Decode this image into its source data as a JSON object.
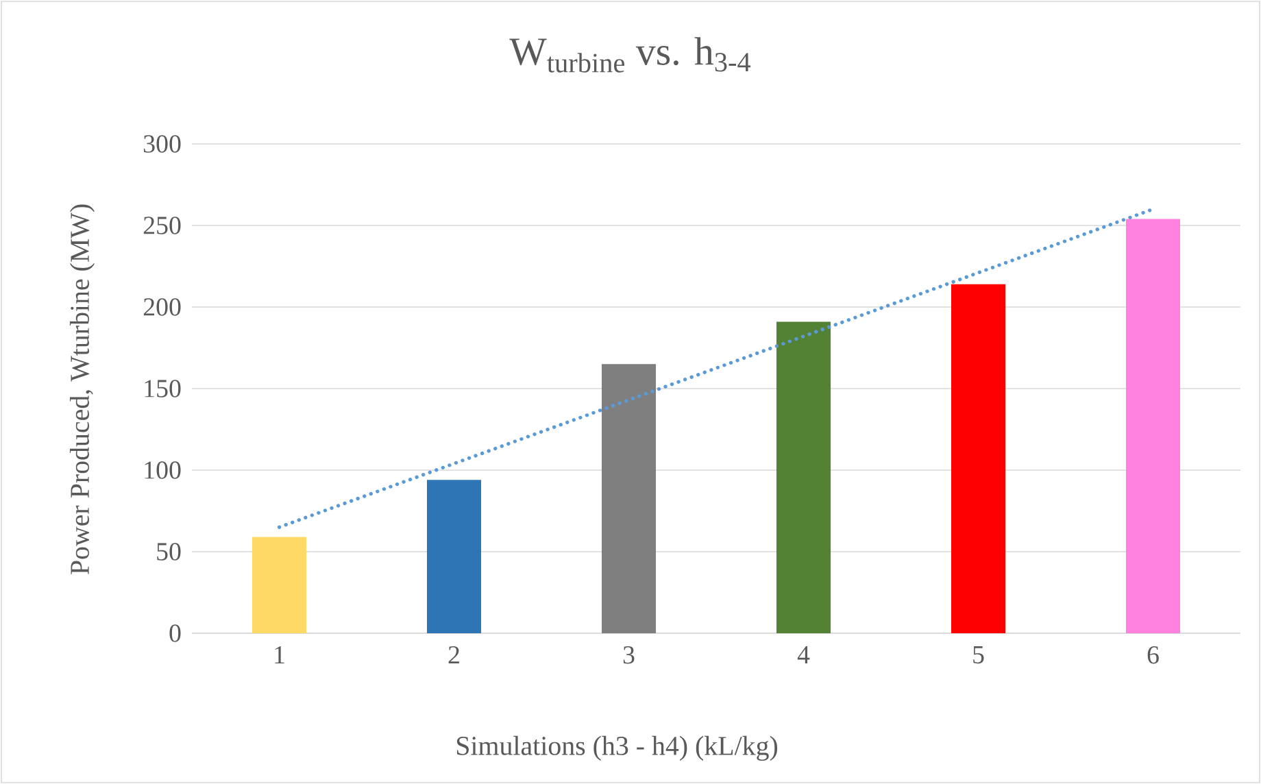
{
  "chart_data": {
    "type": "bar",
    "title": "W$_{turbine}$ vs. h$_{3-4}$",
    "xlabel": "Simulations (h3 - h4) (kL/kg)",
    "ylabel": "Power Produced, Wturbine (MW)",
    "xlim": [
      0.5,
      6.5
    ],
    "xticks": [
      1,
      2,
      3,
      4,
      5,
      6
    ],
    "ylim": [
      0,
      300
    ],
    "yticks": [
      0,
      50,
      100,
      150,
      200,
      250,
      300
    ],
    "grid": "y",
    "series": [
      {
        "x": [
          1,
          2,
          3,
          4,
          5,
          6
        ],
        "values": [
          59,
          94,
          165,
          191,
          214,
          254
        ],
        "colors": [
          "#ffd966",
          "#2e75b6",
          "#7f7f7f",
          "#548235",
          "#ff0000",
          "#ff80df"
        ]
      },
      {
        "type": "line",
        "x": [
          1,
          6
        ],
        "values": [
          65,
          260
        ],
        "color": "#5b9bd5",
        "line_style": "dotted"
      }
    ]
  }
}
